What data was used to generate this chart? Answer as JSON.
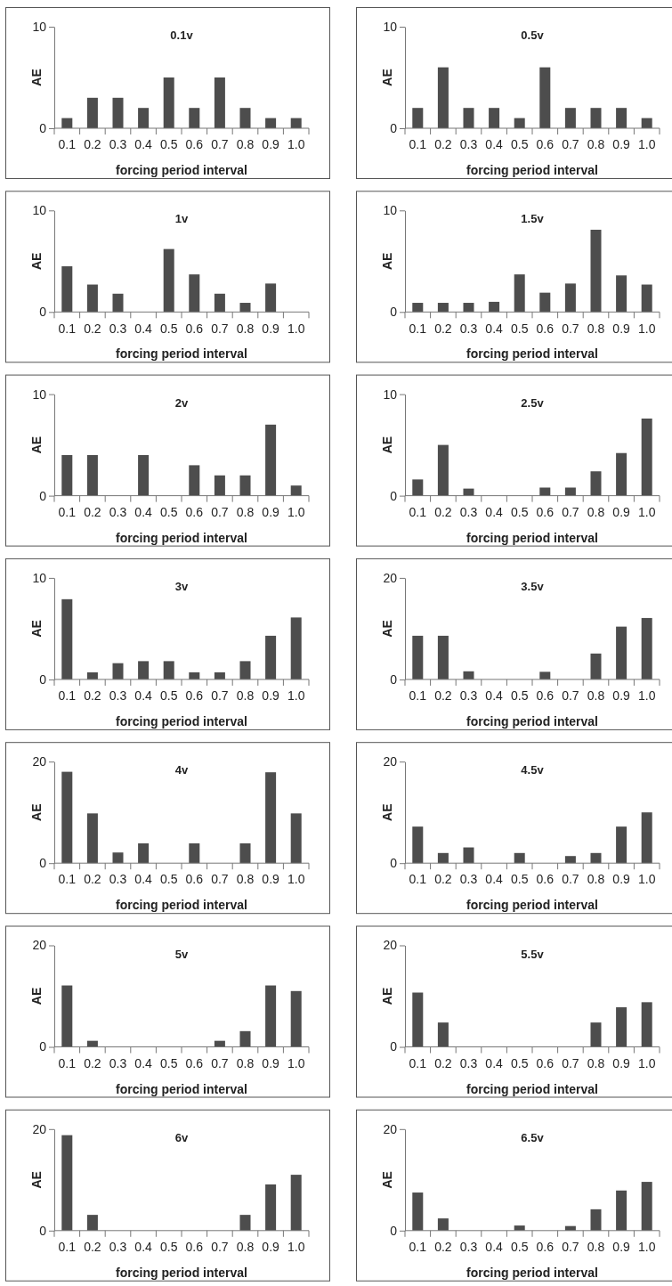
{
  "chart_data": [
    {
      "type": "bar",
      "title": "0.1v",
      "xlabel": "forcing period interval",
      "ylabel": "AE",
      "categories": [
        "0.1",
        "0.2",
        "0.3",
        "0.4",
        "0.5",
        "0.6",
        "0.7",
        "0.8",
        "0.9",
        "1.0"
      ],
      "values": [
        1,
        3,
        3,
        2,
        5,
        2,
        5,
        2,
        1,
        1
      ],
      "color": "#4d4d4d",
      "ylim": [
        0,
        10
      ],
      "yticks": [
        0,
        10
      ]
    },
    {
      "type": "bar",
      "title": "0.5v",
      "xlabel": "forcing period interval",
      "ylabel": "AE",
      "categories": [
        "0.1",
        "0.2",
        "0.3",
        "0.4",
        "0.5",
        "0.6",
        "0.7",
        "0.8",
        "0.9",
        "1.0"
      ],
      "values": [
        2,
        6,
        2,
        2,
        1,
        6,
        2,
        2,
        2,
        1
      ],
      "color": "#4d4d4d",
      "ylim": [
        0,
        10
      ],
      "yticks": [
        0,
        10
      ]
    },
    {
      "type": "bar",
      "title": "1v",
      "xlabel": "forcing period interval",
      "ylabel": "AE",
      "categories": [
        "0.1",
        "0.2",
        "0.3",
        "0.4",
        "0.5",
        "0.6",
        "0.7",
        "0.8",
        "0.9",
        "1.0"
      ],
      "values": [
        4.5,
        2.7,
        1.8,
        0,
        6.2,
        3.7,
        1.8,
        0.9,
        2.8,
        0
      ],
      "color": "#4d4d4d",
      "ylim": [
        0,
        10
      ],
      "yticks": [
        0,
        10
      ]
    },
    {
      "type": "bar",
      "title": "1.5v",
      "xlabel": "forcing period interval",
      "ylabel": "AE",
      "categories": [
        "0.1",
        "0.2",
        "0.3",
        "0.4",
        "0.5",
        "0.6",
        "0.7",
        "0.8",
        "0.9",
        "1.0"
      ],
      "values": [
        0.9,
        0.9,
        0.9,
        1,
        3.7,
        1.9,
        2.8,
        8.1,
        3.6,
        2.7
      ],
      "color": "#4d4d4d",
      "ylim": [
        0,
        10
      ],
      "yticks": [
        0,
        10
      ]
    },
    {
      "type": "bar",
      "title": "2v",
      "xlabel": "forcing period interval",
      "ylabel": "AE",
      "categories": [
        "0.1",
        "0.2",
        "0.3",
        "0.4",
        "0.5",
        "0.6",
        "0.7",
        "0.8",
        "0.9",
        "1.0"
      ],
      "values": [
        4,
        4,
        0,
        4,
        0,
        3,
        2,
        2,
        7,
        1
      ],
      "color": "#4d4d4d",
      "ylim": [
        0,
        10
      ],
      "yticks": [
        0,
        10
      ]
    },
    {
      "type": "bar",
      "title": "2.5v",
      "xlabel": "forcing period interval",
      "ylabel": "AE",
      "categories": [
        "0.1",
        "0.2",
        "0.3",
        "0.4",
        "0.5",
        "0.6",
        "0.7",
        "0.8",
        "0.9",
        "1.0"
      ],
      "values": [
        1.6,
        5,
        0.7,
        0,
        0,
        0.8,
        0.8,
        2.4,
        4.2,
        7.6
      ],
      "color": "#4d4d4d",
      "ylim": [
        0,
        10
      ],
      "yticks": [
        0,
        10
      ]
    },
    {
      "type": "bar",
      "title": "3v",
      "xlabel": "forcing period interval",
      "ylabel": "AE",
      "categories": [
        "0.1",
        "0.2",
        "0.3",
        "0.4",
        "0.5",
        "0.6",
        "0.7",
        "0.8",
        "0.9",
        "1.0"
      ],
      "values": [
        7.9,
        0.7,
        1.6,
        1.8,
        1.8,
        0.7,
        0.7,
        1.8,
        4.3,
        6.1
      ],
      "color": "#4d4d4d",
      "ylim": [
        0,
        10
      ],
      "yticks": [
        0,
        10
      ]
    },
    {
      "type": "bar",
      "title": "3.5v",
      "xlabel": "forcing period interval",
      "ylabel": "AE",
      "categories": [
        "0.1",
        "0.2",
        "0.3",
        "0.4",
        "0.5",
        "0.6",
        "0.7",
        "0.8",
        "0.9",
        "1.0"
      ],
      "values": [
        8.6,
        8.6,
        1.6,
        0,
        0,
        1.5,
        0,
        5.1,
        10.4,
        12.1
      ],
      "color": "#4d4d4d",
      "ylim": [
        0,
        20
      ],
      "yticks": [
        0,
        20
      ]
    },
    {
      "type": "bar",
      "title": "4v",
      "xlabel": "forcing period interval",
      "ylabel": "AE",
      "categories": [
        "0.1",
        "0.2",
        "0.3",
        "0.4",
        "0.5",
        "0.6",
        "0.7",
        "0.8",
        "0.9",
        "1.0"
      ],
      "values": [
        18,
        9.8,
        2.1,
        3.9,
        0,
        3.9,
        0,
        3.9,
        17.9,
        9.8
      ],
      "color": "#4d4d4d",
      "ylim": [
        0,
        20
      ],
      "yticks": [
        0,
        20
      ]
    },
    {
      "type": "bar",
      "title": "4.5v",
      "xlabel": "forcing period interval",
      "ylabel": "AE",
      "categories": [
        "0.1",
        "0.2",
        "0.3",
        "0.4",
        "0.5",
        "0.6",
        "0.7",
        "0.8",
        "0.9",
        "1.0"
      ],
      "values": [
        7.2,
        2,
        3.1,
        0,
        2,
        0,
        1.4,
        2,
        7.2,
        10
      ],
      "color": "#4d4d4d",
      "ylim": [
        0,
        20
      ],
      "yticks": [
        0,
        20
      ]
    },
    {
      "type": "bar",
      "title": "5v",
      "xlabel": "forcing period interval",
      "ylabel": "AE",
      "categories": [
        "0.1",
        "0.2",
        "0.3",
        "0.4",
        "0.5",
        "0.6",
        "0.7",
        "0.8",
        "0.9",
        "1.0"
      ],
      "values": [
        12.1,
        1.2,
        0,
        0,
        0,
        0,
        1.2,
        3.1,
        12.1,
        11
      ],
      "color": "#4d4d4d",
      "ylim": [
        0,
        20
      ],
      "yticks": [
        0,
        20
      ]
    },
    {
      "type": "bar",
      "title": "5.5v",
      "xlabel": "forcing period interval",
      "ylabel": "AE",
      "categories": [
        "0.1",
        "0.2",
        "0.3",
        "0.4",
        "0.5",
        "0.6",
        "0.7",
        "0.8",
        "0.9",
        "1.0"
      ],
      "values": [
        10.7,
        4.8,
        0,
        0,
        0,
        0,
        0,
        4.8,
        7.8,
        8.8
      ],
      "color": "#4d4d4d",
      "ylim": [
        0,
        20
      ],
      "yticks": [
        0,
        20
      ]
    },
    {
      "type": "bar",
      "title": "6v",
      "xlabel": "forcing period interval",
      "ylabel": "AE",
      "categories": [
        "0.1",
        "0.2",
        "0.3",
        "0.4",
        "0.5",
        "0.6",
        "0.7",
        "0.8",
        "0.9",
        "1.0"
      ],
      "values": [
        18.8,
        3.1,
        0,
        0,
        0,
        0,
        0,
        3.1,
        9.1,
        11
      ],
      "color": "#4d4d4d",
      "ylim": [
        0,
        20
      ],
      "yticks": [
        0,
        20
      ]
    },
    {
      "type": "bar",
      "title": "6.5v",
      "xlabel": "forcing period interval",
      "ylabel": "AE",
      "categories": [
        "0.1",
        "0.2",
        "0.3",
        "0.4",
        "0.5",
        "0.6",
        "0.7",
        "0.8",
        "0.9",
        "1.0"
      ],
      "values": [
        7.5,
        2.4,
        0,
        0,
        1,
        0,
        0.9,
        4.2,
        7.9,
        9.6
      ],
      "color": "#4d4d4d",
      "ylim": [
        0,
        20
      ],
      "yticks": [
        0,
        20
      ]
    }
  ]
}
